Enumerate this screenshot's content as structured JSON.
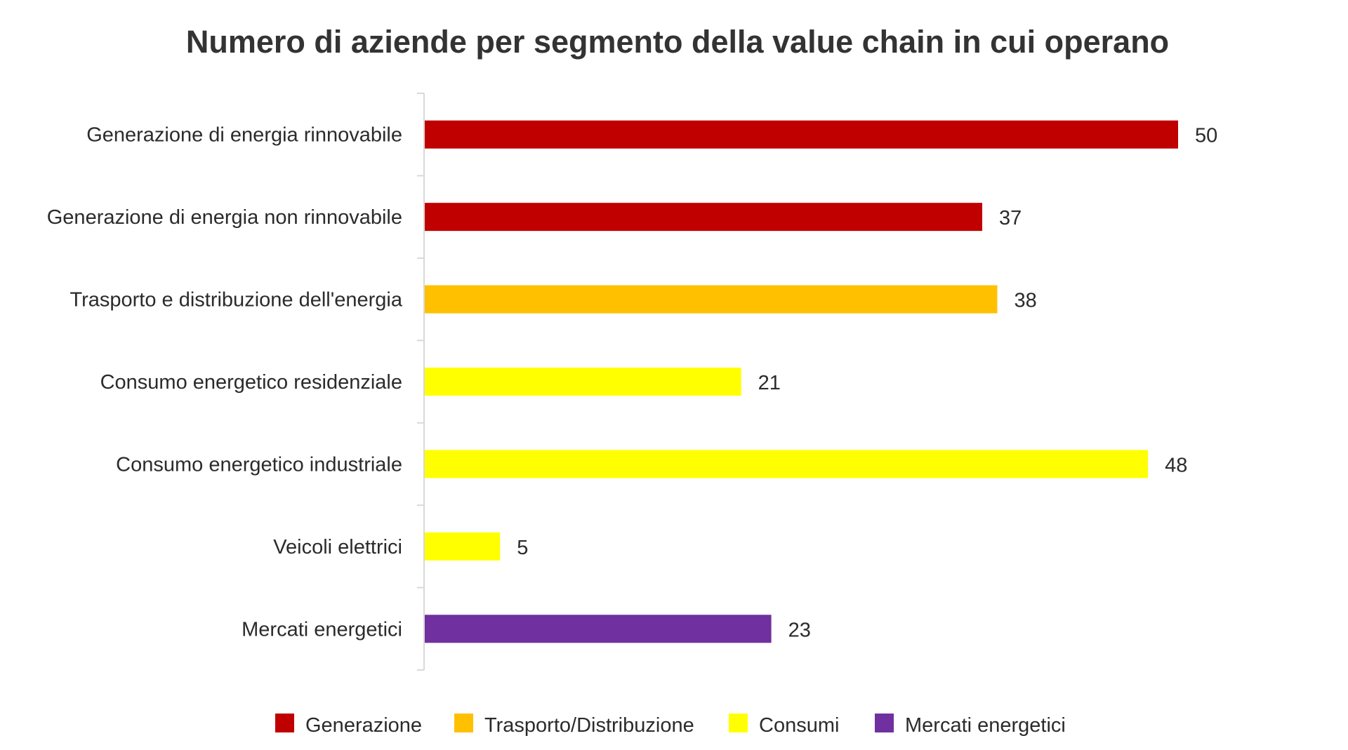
{
  "chart_data": {
    "type": "bar",
    "orientation": "horizontal",
    "title": "Numero di aziende per segmento della value chain in cui operano",
    "xlabel": "",
    "ylabel": "",
    "xlim": [
      0,
      50
    ],
    "grid": false,
    "legend_position": "bottom",
    "categories": [
      "Generazione di energia rinnovabile",
      "Generazione di energia non rinnovabile",
      "Trasporto e distribuzione dell'energia",
      "Consumo energetico residenziale",
      "Consumo energetico industriale",
      "Veicoli elettrici",
      "Mercati energetici"
    ],
    "values": [
      50,
      37,
      38,
      21,
      48,
      5,
      23
    ],
    "bar_groups": [
      "Generazione",
      "Generazione",
      "Trasporto/Distribuzione",
      "Consumi",
      "Consumi",
      "Consumi",
      "Mercati energetici"
    ],
    "legend": [
      {
        "name": "Generazione",
        "color": "#c00000"
      },
      {
        "name": "Trasporto/Distribuzione",
        "color": "#ffc000"
      },
      {
        "name": "Consumi",
        "color": "#ffff00"
      },
      {
        "name": "Mercati energetici",
        "color": "#7030a0"
      }
    ]
  }
}
